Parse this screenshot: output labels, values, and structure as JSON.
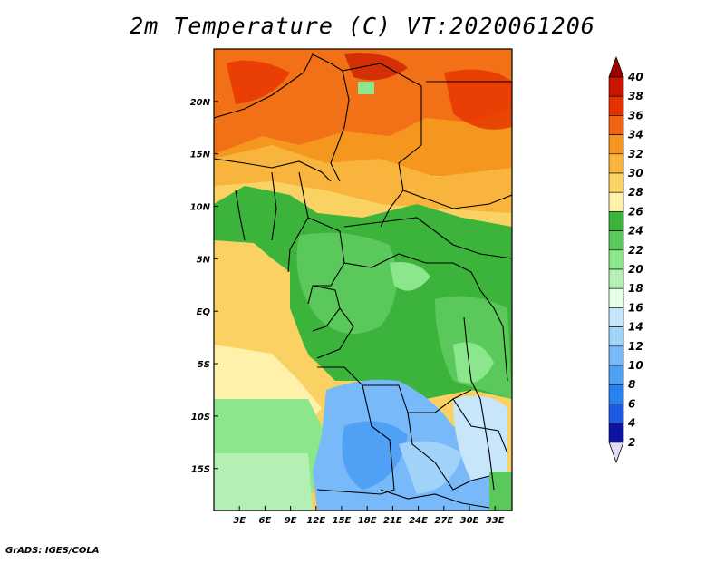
{
  "title": "2m Temperature (C) VT:2020061206",
  "footer": "GrADS: IGES/COLA",
  "map": {
    "lon_range": [
      0,
      35
    ],
    "lat_range": [
      -19,
      25
    ],
    "lon_ticks": [
      "3E",
      "6E",
      "9E",
      "12E",
      "15E",
      "18E",
      "21E",
      "24E",
      "27E",
      "30E",
      "33E"
    ],
    "lon_tick_values": [
      3,
      6,
      9,
      12,
      15,
      18,
      21,
      24,
      27,
      30,
      33
    ],
    "lat_ticks": [
      "20N",
      "15N",
      "10N",
      "5N",
      "EQ",
      "5S",
      "10S",
      "15S"
    ],
    "lat_tick_values": [
      20,
      15,
      10,
      5,
      0,
      -5,
      -10,
      -15
    ]
  },
  "colorbar": {
    "levels": [
      "40",
      "38",
      "36",
      "34",
      "32",
      "30",
      "28",
      "26",
      "24",
      "22",
      "20",
      "18",
      "16",
      "14",
      "12",
      "10",
      "8",
      "6",
      "4",
      "2"
    ],
    "colors_top_to_bottom": [
      "#a00000",
      "#c81400",
      "#e63200",
      "#f06414",
      "#f5961e",
      "#f8b43c",
      "#fad264",
      "#fff0aa",
      "#3cb43c",
      "#5ac85a",
      "#8ce68c",
      "#b4f0b4",
      "#e6ffe6",
      "#c8e6fa",
      "#a0d2fa",
      "#78b9fa",
      "#50a0f5",
      "#2882f0",
      "#1e5ae6",
      "#0a14a0",
      "#e6dcf5"
    ]
  }
}
